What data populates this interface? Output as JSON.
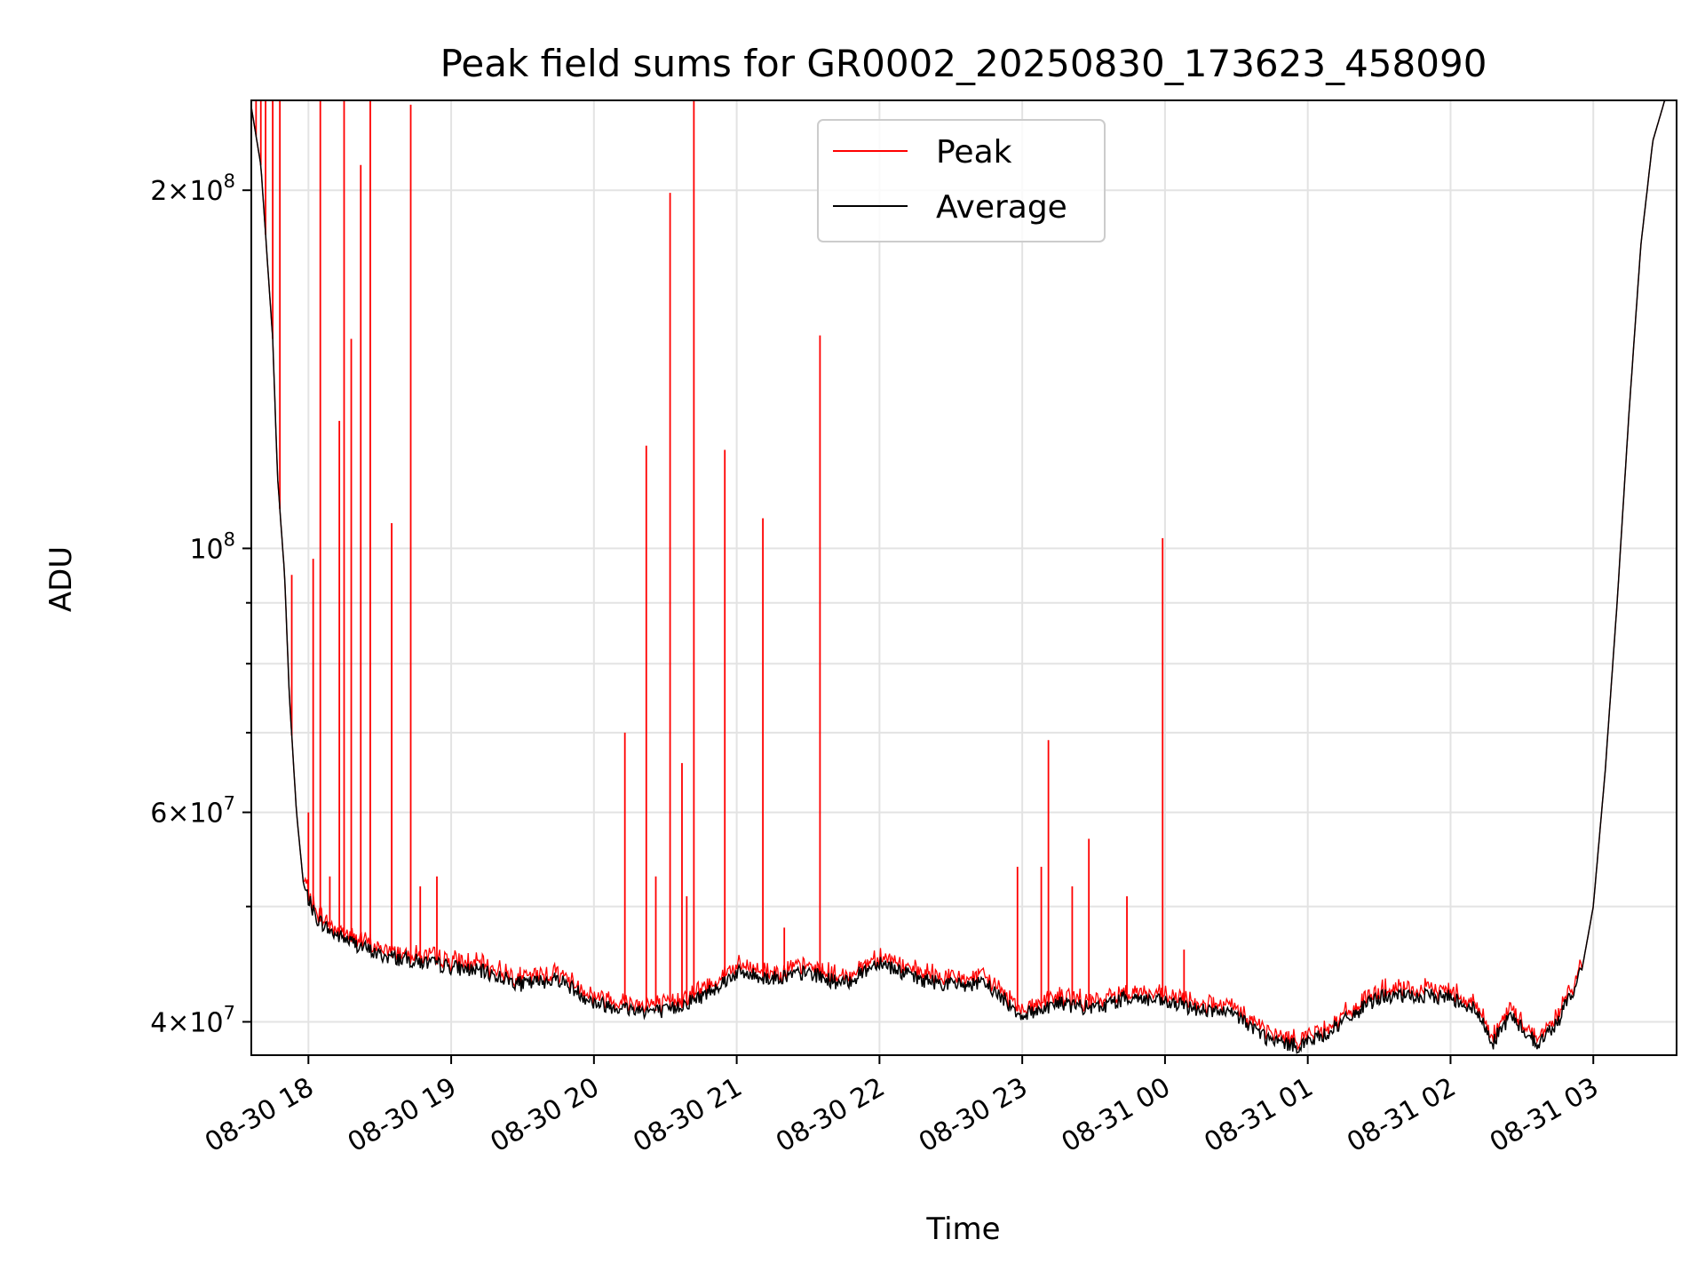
{
  "chart_data": {
    "type": "line",
    "title": "Peak field sums for GR0002_20250830_173623_458090",
    "xlabel": "Time",
    "ylabel": "ADU",
    "yscale": "log",
    "ylim": [
      37500000,
      238000000
    ],
    "xlim": [
      "2025-08-30 17:36",
      "2025-08-31 03:35"
    ],
    "grid": true,
    "legend_position": "top-center",
    "x_ticks": [
      {
        "t": "2025-08-30 18:00",
        "label": "08-30 18"
      },
      {
        "t": "2025-08-30 19:00",
        "label": "08-30 19"
      },
      {
        "t": "2025-08-30 20:00",
        "label": "08-30 20"
      },
      {
        "t": "2025-08-30 21:00",
        "label": "08-30 21"
      },
      {
        "t": "2025-08-30 22:00",
        "label": "08-30 22"
      },
      {
        "t": "2025-08-30 23:00",
        "label": "08-30 23"
      },
      {
        "t": "2025-08-31 00:00",
        "label": "08-31 00"
      },
      {
        "t": "2025-08-31 01:00",
        "label": "08-31 01"
      },
      {
        "t": "2025-08-31 02:00",
        "label": "08-31 02"
      },
      {
        "t": "2025-08-31 03:00",
        "label": "08-31 03"
      }
    ],
    "y_ticks": [
      {
        "value": 40000000,
        "mantissa": "4",
        "exponent": "7"
      },
      {
        "value": 60000000,
        "mantissa": "6",
        "exponent": "7"
      },
      {
        "value": 100000000,
        "mantissa": "",
        "exponent": "8"
      },
      {
        "value": 200000000,
        "mantissa": "2",
        "exponent": "8"
      }
    ],
    "y_minor_ticks": [
      50000000,
      70000000,
      80000000,
      90000000
    ],
    "times_of_base_points": [
      "2025-08-30 17:36",
      "2025-08-30 17:40",
      "2025-08-30 17:45",
      "2025-08-30 17:47",
      "2025-08-30 17:50",
      "2025-08-30 17:52",
      "2025-08-30 17:55",
      "2025-08-30 17:58",
      "2025-08-30 18:03",
      "2025-08-30 18:10",
      "2025-08-30 18:20",
      "2025-08-30 18:30",
      "2025-08-30 18:45",
      "2025-08-30 19:00",
      "2025-08-30 19:15",
      "2025-08-30 19:30",
      "2025-08-30 19:45",
      "2025-08-30 20:00",
      "2025-08-30 20:15",
      "2025-08-30 20:30",
      "2025-08-30 20:45",
      "2025-08-30 21:00",
      "2025-08-30 21:15",
      "2025-08-30 21:30",
      "2025-08-30 21:45",
      "2025-08-30 22:00",
      "2025-08-30 22:15",
      "2025-08-30 22:30",
      "2025-08-30 22:45",
      "2025-08-30 23:00",
      "2025-08-30 23:15",
      "2025-08-30 23:30",
      "2025-08-30 23:45",
      "2025-08-31 00:00",
      "2025-08-31 00:15",
      "2025-08-31 00:30",
      "2025-08-31 00:45",
      "2025-08-31 00:55",
      "2025-08-31 01:05",
      "2025-08-31 01:15",
      "2025-08-31 01:30",
      "2025-08-31 01:45",
      "2025-08-31 02:00",
      "2025-08-31 02:10",
      "2025-08-31 02:18",
      "2025-08-31 02:25",
      "2025-08-31 02:30",
      "2025-08-31 02:37",
      "2025-08-31 02:45",
      "2025-08-31 02:55",
      "2025-08-31 03:00",
      "2025-08-31 03:05",
      "2025-08-31 03:10",
      "2025-08-31 03:15",
      "2025-08-31 03:20",
      "2025-08-31 03:25",
      "2025-08-31 03:30",
      "2025-08-31 03:35"
    ],
    "series": [
      {
        "name": "Peak",
        "color": "#ff0000",
        "spikes": [
          {
            "t": "2025-08-30 17:38",
            "y": 238000000
          },
          {
            "t": "2025-08-30 17:40",
            "y": 238000000
          },
          {
            "t": "2025-08-30 17:42",
            "y": 238000000
          },
          {
            "t": "2025-08-30 17:45",
            "y": 238000000
          },
          {
            "t": "2025-08-30 17:48",
            "y": 238000000
          },
          {
            "t": "2025-08-30 17:53",
            "y": 95000000
          },
          {
            "t": "2025-08-30 18:00",
            "y": 60000000
          },
          {
            "t": "2025-08-30 18:02",
            "y": 98000000
          },
          {
            "t": "2025-08-30 18:05",
            "y": 238000000
          },
          {
            "t": "2025-08-30 18:09",
            "y": 53000000
          },
          {
            "t": "2025-08-30 18:13",
            "y": 128000000
          },
          {
            "t": "2025-08-30 18:15",
            "y": 238000000
          },
          {
            "t": "2025-08-30 18:18",
            "y": 150000000
          },
          {
            "t": "2025-08-30 18:22",
            "y": 210000000
          },
          {
            "t": "2025-08-30 18:26",
            "y": 238000000
          },
          {
            "t": "2025-08-30 18:35",
            "y": 105000000
          },
          {
            "t": "2025-08-30 18:43",
            "y": 236000000
          },
          {
            "t": "2025-08-30 18:47",
            "y": 52000000
          },
          {
            "t": "2025-08-30 18:54",
            "y": 53000000
          },
          {
            "t": "2025-08-30 20:13",
            "y": 70000000
          },
          {
            "t": "2025-08-30 20:22",
            "y": 122000000
          },
          {
            "t": "2025-08-30 20:26",
            "y": 53000000
          },
          {
            "t": "2025-08-30 20:32",
            "y": 199000000
          },
          {
            "t": "2025-08-30 20:37",
            "y": 66000000
          },
          {
            "t": "2025-08-30 20:39",
            "y": 51000000
          },
          {
            "t": "2025-08-30 20:42",
            "y": 238000000
          },
          {
            "t": "2025-08-30 20:55",
            "y": 121000000
          },
          {
            "t": "2025-08-30 21:11",
            "y": 106000000
          },
          {
            "t": "2025-08-30 21:20",
            "y": 48000000
          },
          {
            "t": "2025-08-30 21:35",
            "y": 151000000
          },
          {
            "t": "2025-08-30 22:58",
            "y": 54000000
          },
          {
            "t": "2025-08-30 23:08",
            "y": 54000000
          },
          {
            "t": "2025-08-30 23:11",
            "y": 69000000
          },
          {
            "t": "2025-08-30 23:21",
            "y": 52000000
          },
          {
            "t": "2025-08-30 23:28",
            "y": 57000000
          },
          {
            "t": "2025-08-30 23:44",
            "y": 51000000
          },
          {
            "t": "2025-08-30 23:59",
            "y": 102000000
          },
          {
            "t": "2025-08-31 00:08",
            "y": 46000000
          }
        ]
      },
      {
        "name": "Average",
        "color": "#000000",
        "values": [
          235000000,
          210000000,
          150000000,
          115000000,
          95000000,
          75000000,
          60000000,
          52000000,
          49000000,
          47500000,
          46500000,
          45500000,
          45000000,
          44500000,
          44000000,
          43000000,
          43500000,
          41500000,
          41000000,
          40800000,
          42000000,
          44000000,
          43500000,
          44000000,
          43000000,
          45000000,
          43500000,
          43000000,
          43000000,
          40500000,
          41500000,
          41000000,
          42000000,
          41500000,
          41000000,
          40500000,
          38500000,
          38200000,
          38800000,
          40000000,
          42000000,
          42000000,
          42000000,
          41000000,
          38500000,
          40500000,
          39500000,
          38300000,
          40000000,
          44000000,
          50000000,
          65000000,
          90000000,
          130000000,
          180000000,
          220000000,
          238000000,
          238000000
        ]
      }
    ]
  }
}
